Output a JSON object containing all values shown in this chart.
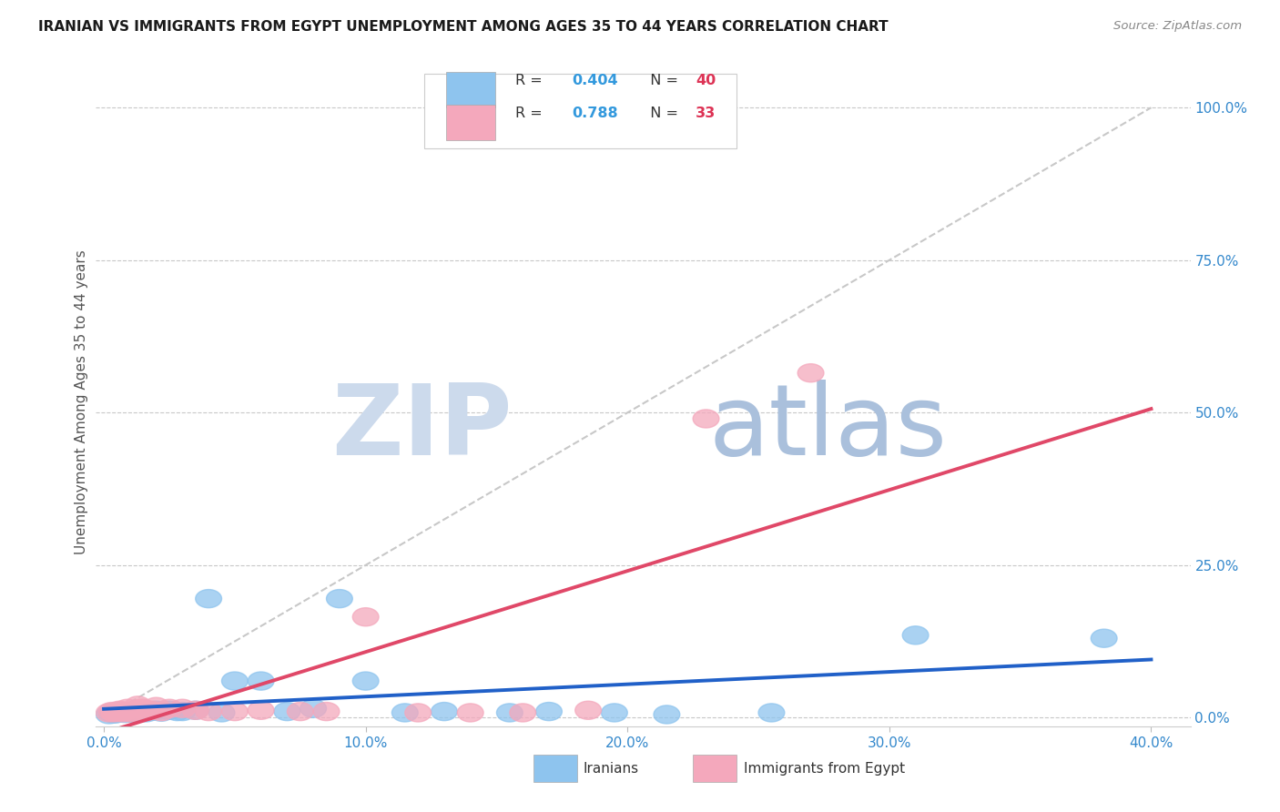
{
  "title": "IRANIAN VS IMMIGRANTS FROM EGYPT UNEMPLOYMENT AMONG AGES 35 TO 44 YEARS CORRELATION CHART",
  "source_text": "Source: ZipAtlas.com",
  "ylabel": "Unemployment Among Ages 35 to 44 years",
  "xlabel_ticks": [
    "0.0%",
    "10.0%",
    "20.0%",
    "30.0%",
    "40.0%"
  ],
  "xlabel_vals": [
    0.0,
    0.1,
    0.2,
    0.3,
    0.4
  ],
  "ytick_labels": [
    "0.0%",
    "25.0%",
    "50.0%",
    "75.0%",
    "100.0%"
  ],
  "ytick_vals": [
    0.0,
    0.25,
    0.5,
    0.75,
    1.0
  ],
  "xlim": [
    -0.003,
    0.415
  ],
  "ylim": [
    -0.015,
    1.05
  ],
  "iranian_R": 0.404,
  "iranian_N": 40,
  "egypt_R": 0.788,
  "egypt_N": 33,
  "iranian_color": "#8ec4ee",
  "egypt_color": "#f4a8bc",
  "iranian_line_color": "#2060c8",
  "egypt_line_color": "#e04868",
  "diagonal_color": "#c8c8c8",
  "watermark_zip_color": "#ccdaec",
  "watermark_atlas_color": "#aac0dc",
  "title_color": "#1a1a1a",
  "axis_label_color": "#555555",
  "tick_color": "#3388cc",
  "legend_R_color": "#3399dd",
  "legend_N_color": "#dd3355",
  "grid_color": "#c8c8c8",
  "iranian_x": [
    0.002,
    0.003,
    0.004,
    0.005,
    0.005,
    0.006,
    0.007,
    0.008,
    0.009,
    0.01,
    0.011,
    0.012,
    0.013,
    0.014,
    0.015,
    0.016,
    0.018,
    0.02,
    0.022,
    0.025,
    0.028,
    0.03,
    0.035,
    0.04,
    0.045,
    0.05,
    0.06,
    0.07,
    0.08,
    0.09,
    0.1,
    0.115,
    0.13,
    0.155,
    0.17,
    0.195,
    0.215,
    0.255,
    0.31,
    0.382
  ],
  "iranian_y": [
    0.005,
    0.008,
    0.006,
    0.01,
    0.007,
    0.008,
    0.009,
    0.007,
    0.01,
    0.008,
    0.009,
    0.007,
    0.008,
    0.01,
    0.009,
    0.008,
    0.01,
    0.012,
    0.009,
    0.012,
    0.01,
    0.01,
    0.012,
    0.195,
    0.008,
    0.06,
    0.06,
    0.01,
    0.015,
    0.195,
    0.06,
    0.008,
    0.01,
    0.008,
    0.01,
    0.008,
    0.005,
    0.008,
    0.135,
    0.13
  ],
  "egypt_x": [
    0.002,
    0.003,
    0.004,
    0.005,
    0.006,
    0.007,
    0.008,
    0.009,
    0.01,
    0.011,
    0.012,
    0.013,
    0.014,
    0.015,
    0.016,
    0.018,
    0.02,
    0.022,
    0.025,
    0.03,
    0.035,
    0.04,
    0.05,
    0.06,
    0.075,
    0.085,
    0.1,
    0.12,
    0.14,
    0.16,
    0.185,
    0.23,
    0.27
  ],
  "egypt_y": [
    0.008,
    0.01,
    0.008,
    0.009,
    0.012,
    0.008,
    0.01,
    0.015,
    0.008,
    0.01,
    0.012,
    0.02,
    0.015,
    0.015,
    0.01,
    0.012,
    0.018,
    0.01,
    0.015,
    0.015,
    0.012,
    0.01,
    0.01,
    0.012,
    0.01,
    0.01,
    0.165,
    0.008,
    0.008,
    0.008,
    0.012,
    0.49,
    0.565
  ]
}
